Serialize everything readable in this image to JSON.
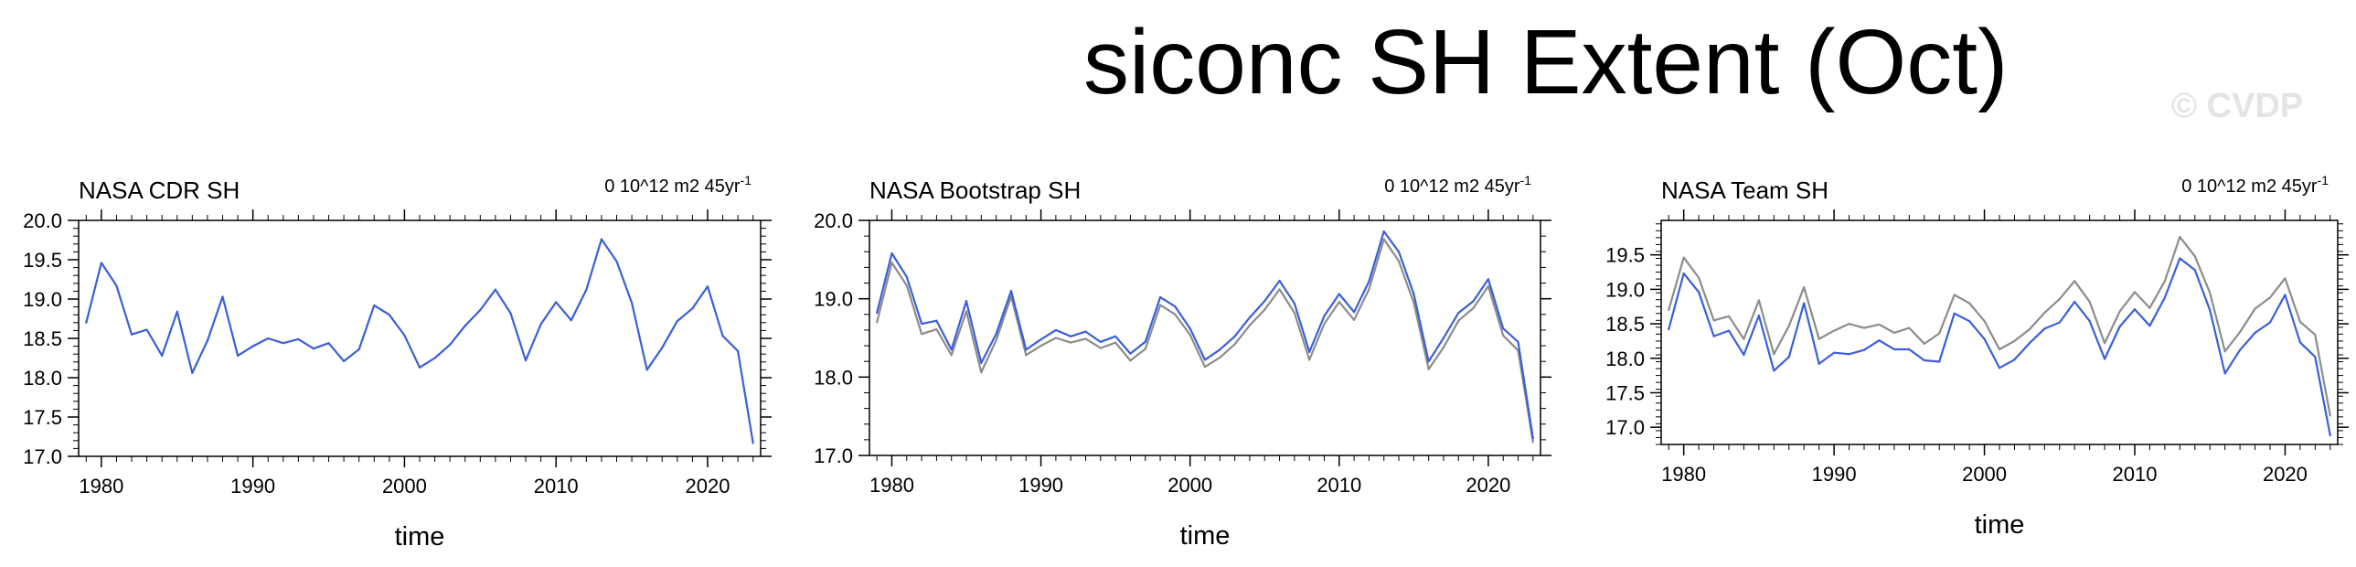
{
  "title": "siconc SH Extent (Oct)",
  "watermark": "© CVDP",
  "colors": {
    "series_main": "#3b5fd9",
    "series_reference": "#8c8c8c",
    "axis": "#000000"
  },
  "chart_data": [
    {
      "type": "line",
      "title": "NASA CDR SH",
      "trend_label": "0 10^12 m2 45yr",
      "trend_label_superscript": "-1",
      "xlabel": "time",
      "xlim": [
        1978.5,
        2023.5
      ],
      "ylim": [
        17.0,
        20.0
      ],
      "xticks": [
        1980,
        1990,
        2000,
        2010,
        2020
      ],
      "yticks": [
        17.0,
        17.5,
        18.0,
        18.5,
        19.0,
        19.5,
        20.0
      ],
      "ytick_labels": [
        "17.0",
        "17.5",
        "18.0",
        "18.5",
        "19.0",
        "19.5",
        "20.0"
      ],
      "x": [
        1979,
        1980,
        1981,
        1982,
        1983,
        1984,
        1985,
        1986,
        1987,
        1988,
        1989,
        1990,
        1991,
        1992,
        1993,
        1994,
        1995,
        1996,
        1997,
        1998,
        1999,
        2000,
        2001,
        2002,
        2003,
        2004,
        2005,
        2006,
        2007,
        2008,
        2009,
        2010,
        2011,
        2012,
        2013,
        2014,
        2015,
        2016,
        2017,
        2018,
        2019,
        2020,
        2021,
        2022,
        2023
      ],
      "series": [
        {
          "color": "#3b5fd9",
          "values": [
            18.7,
            19.46,
            19.17,
            18.55,
            18.61,
            18.28,
            18.84,
            18.06,
            18.47,
            19.03,
            18.28,
            18.4,
            18.5,
            18.44,
            18.49,
            18.37,
            18.44,
            18.21,
            18.36,
            18.92,
            18.8,
            18.54,
            18.13,
            18.25,
            18.42,
            18.66,
            18.86,
            19.12,
            18.82,
            18.22,
            18.68,
            18.96,
            18.73,
            19.12,
            19.76,
            19.48,
            18.95,
            18.1,
            18.38,
            18.72,
            18.88,
            19.16,
            18.53,
            18.34,
            17.17
          ]
        }
      ]
    },
    {
      "type": "line",
      "title": "NASA Bootstrap SH",
      "trend_label": "0 10^12 m2 45yr",
      "trend_label_superscript": "-1",
      "xlabel": "time",
      "xlim": [
        1978.5,
        2023.5
      ],
      "ylim": [
        17.0,
        20.0
      ],
      "xticks": [
        1980,
        1990,
        2000,
        2010,
        2020
      ],
      "yticks": [
        17.0,
        18.0,
        19.0,
        20.0
      ],
      "ytick_labels": [
        "17.0",
        "18.0",
        "19.0",
        "20.0"
      ],
      "x": [
        1979,
        1980,
        1981,
        1982,
        1983,
        1984,
        1985,
        1986,
        1987,
        1988,
        1989,
        1990,
        1991,
        1992,
        1993,
        1994,
        1995,
        1996,
        1997,
        1998,
        1999,
        2000,
        2001,
        2002,
        2003,
        2004,
        2005,
        2006,
        2007,
        2008,
        2009,
        2010,
        2011,
        2012,
        2013,
        2014,
        2015,
        2016,
        2017,
        2018,
        2019,
        2020,
        2021,
        2022,
        2023
      ],
      "series": [
        {
          "color": "#8c8c8c",
          "values": [
            18.7,
            19.46,
            19.17,
            18.55,
            18.61,
            18.28,
            18.84,
            18.06,
            18.47,
            19.03,
            18.28,
            18.4,
            18.5,
            18.44,
            18.49,
            18.37,
            18.44,
            18.21,
            18.36,
            18.92,
            18.8,
            18.54,
            18.13,
            18.25,
            18.42,
            18.66,
            18.86,
            19.12,
            18.82,
            18.22,
            18.68,
            18.96,
            18.73,
            19.12,
            19.76,
            19.48,
            18.95,
            18.1,
            18.38,
            18.72,
            18.88,
            19.16,
            18.53,
            18.34,
            17.17
          ]
        },
        {
          "color": "#3b5fd9",
          "values": [
            18.82,
            19.58,
            19.28,
            18.68,
            18.72,
            18.35,
            18.97,
            18.18,
            18.55,
            19.1,
            18.35,
            18.48,
            18.6,
            18.52,
            18.58,
            18.45,
            18.52,
            18.3,
            18.45,
            19.02,
            18.9,
            18.62,
            18.22,
            18.35,
            18.52,
            18.76,
            18.97,
            19.23,
            18.94,
            18.32,
            18.78,
            19.06,
            18.83,
            19.22,
            19.86,
            19.6,
            19.06,
            18.2,
            18.5,
            18.82,
            18.97,
            19.25,
            18.62,
            18.45,
            17.22
          ]
        }
      ]
    },
    {
      "type": "line",
      "title": "NASA Team SH",
      "trend_label": "0 10^12 m2 45yr",
      "trend_label_superscript": "-1",
      "xlabel": "time",
      "xlim": [
        1978.5,
        2023.5
      ],
      "ylim": [
        16.75,
        20.0
      ],
      "xticks": [
        1980,
        1990,
        2000,
        2010,
        2020
      ],
      "yticks": [
        17.0,
        17.5,
        18.0,
        18.5,
        19.0,
        19.5
      ],
      "ytick_labels": [
        "17.0",
        "17.5",
        "18.0",
        "18.5",
        "19.0",
        "19.5"
      ],
      "x": [
        1979,
        1980,
        1981,
        1982,
        1983,
        1984,
        1985,
        1986,
        1987,
        1988,
        1989,
        1990,
        1991,
        1992,
        1993,
        1994,
        1995,
        1996,
        1997,
        1998,
        1999,
        2000,
        2001,
        2002,
        2003,
        2004,
        2005,
        2006,
        2007,
        2008,
        2009,
        2010,
        2011,
        2012,
        2013,
        2014,
        2015,
        2016,
        2017,
        2018,
        2019,
        2020,
        2021,
        2022,
        2023
      ],
      "series": [
        {
          "color": "#8c8c8c",
          "values": [
            18.7,
            19.46,
            19.17,
            18.55,
            18.61,
            18.28,
            18.84,
            18.06,
            18.47,
            19.03,
            18.28,
            18.4,
            18.5,
            18.44,
            18.49,
            18.37,
            18.44,
            18.21,
            18.36,
            18.92,
            18.8,
            18.54,
            18.13,
            18.25,
            18.42,
            18.66,
            18.86,
            19.12,
            18.82,
            18.22,
            18.68,
            18.96,
            18.73,
            19.12,
            19.76,
            19.48,
            18.95,
            18.1,
            18.38,
            18.72,
            18.88,
            19.16,
            18.53,
            18.34,
            17.17
          ]
        },
        {
          "color": "#3b5fd9",
          "values": [
            18.42,
            19.23,
            18.96,
            18.32,
            18.4,
            18.05,
            18.62,
            17.82,
            18.02,
            18.8,
            17.92,
            18.08,
            18.06,
            18.12,
            18.26,
            18.13,
            18.13,
            17.97,
            17.95,
            18.65,
            18.54,
            18.28,
            17.86,
            17.98,
            18.22,
            18.43,
            18.52,
            18.82,
            18.54,
            17.99,
            18.46,
            18.71,
            18.47,
            18.88,
            19.45,
            19.28,
            18.7,
            17.78,
            18.12,
            18.37,
            18.52,
            18.92,
            18.23,
            18.02,
            16.88
          ]
        }
      ]
    }
  ]
}
